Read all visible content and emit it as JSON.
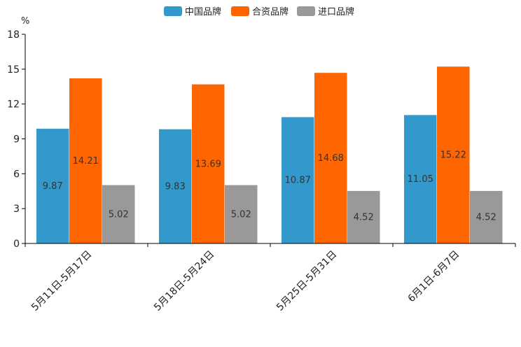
{
  "chart_data": {
    "type": "bar",
    "unit": "%",
    "categories": [
      "5月11日-5月17日",
      "5月18日-5月24日",
      "5月25日-5月31日",
      "6月1日-6月7日"
    ],
    "series": [
      {
        "name": "中国品牌",
        "color": "#3399cc",
        "values": [
          9.87,
          9.83,
          10.87,
          11.05
        ],
        "labels": [
          "9.87",
          "9.83",
          "10.87",
          "11.05"
        ]
      },
      {
        "name": "合资品牌",
        "color": "#ff6600",
        "values": [
          14.21,
          13.69,
          14.68,
          15.22
        ],
        "labels": [
          "14.21",
          "13.69",
          "14.68",
          "15.22"
        ]
      },
      {
        "name": "进口品牌",
        "color": "#999999",
        "values": [
          5.02,
          5.02,
          4.52,
          4.52
        ],
        "labels": [
          "5.02",
          "5.02",
          "4.52",
          "4.52"
        ]
      }
    ],
    "ylim": [
      0,
      18
    ],
    "yticks": [
      0,
      3,
      6,
      9,
      12,
      15,
      18
    ],
    "ytick_labels": [
      "0",
      "3",
      "6",
      "9",
      "12",
      "15",
      "18"
    ],
    "legend_position": "top-center",
    "grid": false
  }
}
